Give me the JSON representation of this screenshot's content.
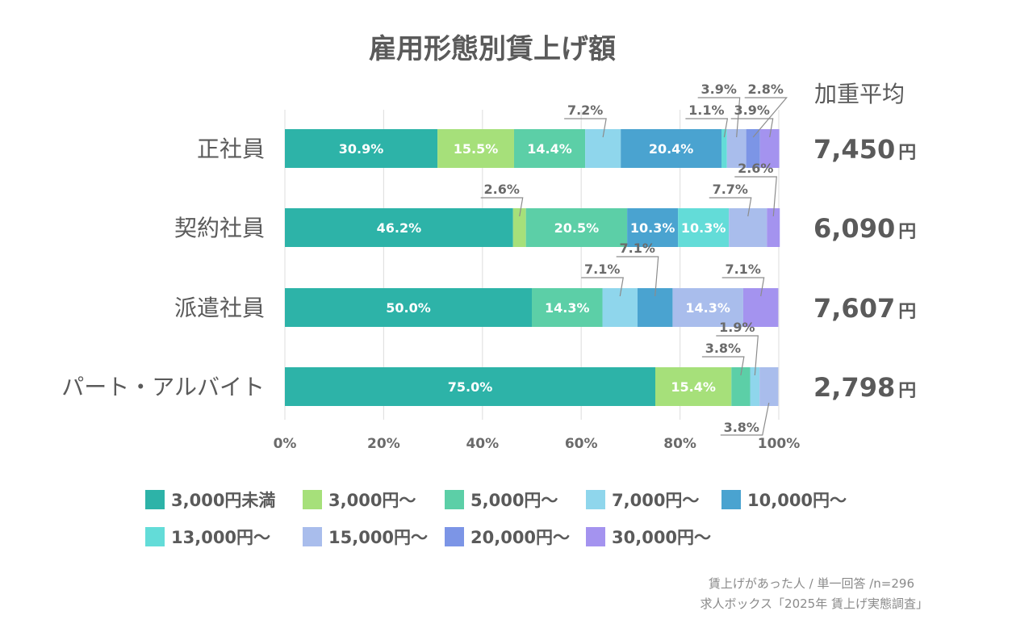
{
  "chart_data": {
    "type": "bar",
    "orientation": "horizontal",
    "stacked": true,
    "title": "雇用形態別賃上げ額",
    "categories": [
      "正社員",
      "契約社員",
      "派遣社員",
      "パート・アルバイト"
    ],
    "series": [
      {
        "name": "3,000円未満",
        "color": "#2db3a8",
        "values": [
          30.9,
          46.2,
          50.0,
          75.0
        ]
      },
      {
        "name": "3,000円〜",
        "color": "#a6e07a",
        "values": [
          15.5,
          2.6,
          0,
          15.4
        ]
      },
      {
        "name": "5,000円〜",
        "color": "#5ccfa7",
        "values": [
          14.4,
          20.5,
          14.3,
          3.8
        ]
      },
      {
        "name": "7,000円〜",
        "color": "#8fd6ec",
        "values": [
          7.2,
          0,
          7.1,
          1.9
        ]
      },
      {
        "name": "10,000円〜",
        "color": "#4aa3d0",
        "values": [
          20.4,
          10.3,
          7.1,
          0
        ]
      },
      {
        "name": "13,000円〜",
        "color": "#63dcd8",
        "values": [
          1.1,
          10.3,
          0,
          0
        ]
      },
      {
        "name": "15,000円〜",
        "color": "#a9bdec",
        "values": [
          3.9,
          7.7,
          14.3,
          3.8
        ]
      },
      {
        "name": "20,000円〜",
        "color": "#7c95e6",
        "values": [
          2.8,
          0,
          0,
          0
        ]
      },
      {
        "name": "30,000円〜",
        "color": "#a493ef",
        "values": [
          3.9,
          2.6,
          7.1,
          0
        ]
      }
    ],
    "xaxis": {
      "min": 0,
      "max": 100,
      "ticks": [
        "0%",
        "20%",
        "40%",
        "60%",
        "80%",
        "100%"
      ]
    },
    "grid": true,
    "legend": {
      "position": "bottom"
    },
    "weighted_average": {
      "header": "加重平均",
      "values": [
        {
          "number": "7,450",
          "unit": "円"
        },
        {
          "number": "6,090",
          "unit": "円"
        },
        {
          "number": "7,607",
          "unit": "円"
        },
        {
          "number": "2,798",
          "unit": "円"
        }
      ]
    },
    "label_threshold": 10,
    "note_line1": "賃上げがあった人 / 単一回答 /n=296",
    "note_line2": "求人ボックス「2025年 賃上げ実態調査」"
  }
}
